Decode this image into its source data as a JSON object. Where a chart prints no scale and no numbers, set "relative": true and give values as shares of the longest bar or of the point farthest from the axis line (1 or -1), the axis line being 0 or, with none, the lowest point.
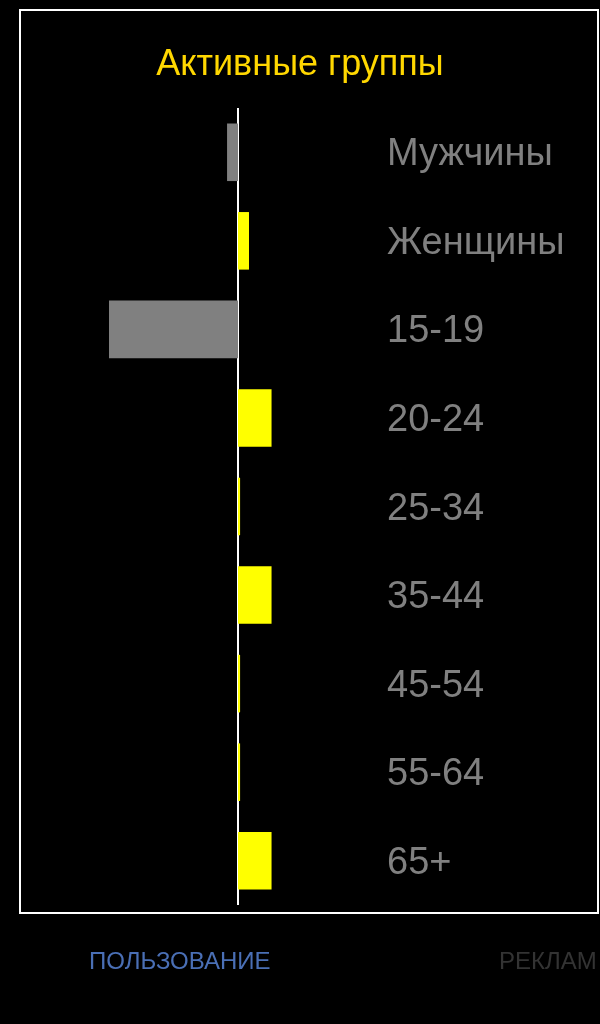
{
  "chart_data": {
    "type": "bar",
    "title": "Активные группы",
    "orientation": "horizontal",
    "relative": true,
    "categories": [
      "Мужчины",
      "Женщины",
      "15-19",
      "20-24",
      "25-34",
      "35-44",
      "45-54",
      "55-64",
      "65+"
    ],
    "values": [
      -0.085,
      0.085,
      -1,
      0.26,
      0.016,
      0.26,
      0.016,
      0.016,
      0.26
    ],
    "colors": [
      "#808080",
      "#ffff00",
      "#808080",
      "#ffff00",
      "#ffff00",
      "#ffff00",
      "#ffff00",
      "#ffff00",
      "#ffff00"
    ],
    "annotations": [
      "ПОЛЬЗОВАНИЕ",
      "РЕКЛАМ"
    ],
    "legend": false,
    "grid": false
  }
}
